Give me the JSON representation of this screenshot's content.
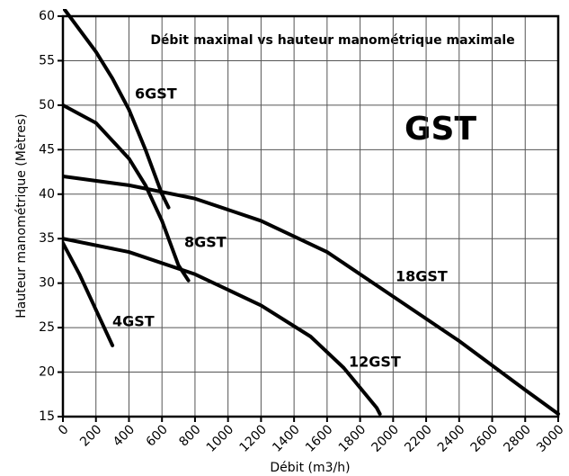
{
  "chart_data": {
    "type": "line",
    "title": "Débit maximal vs hauteur manométrique maximale",
    "annotation": "GST",
    "x_label": "Débit (m3/h)",
    "y_label": "Hauteur manométrique (Mètres)",
    "xlim": [
      0,
      3000
    ],
    "ylim": [
      15,
      60
    ],
    "xticks": [
      0,
      200,
      400,
      600,
      800,
      1000,
      1200,
      1400,
      1600,
      1800,
      2000,
      2200,
      2400,
      2600,
      2800,
      3000
    ],
    "yticks": [
      15,
      20,
      25,
      30,
      35,
      40,
      45,
      50,
      55,
      60
    ],
    "grid": true,
    "color": "#000000",
    "series": [
      {
        "name": "6GST",
        "x": [
          0,
          200,
          300,
          400,
          500,
          600,
          640
        ],
        "values": [
          61,
          56,
          53,
          49.5,
          45,
          40,
          38.5
        ]
      },
      {
        "name": "8GST",
        "x": [
          0,
          200,
          400,
          500,
          600,
          700,
          760
        ],
        "values": [
          50,
          48,
          44,
          41,
          37,
          32,
          30.3
        ]
      },
      {
        "name": "18GST",
        "x": [
          0,
          400,
          800,
          1200,
          1600,
          2000,
          2400,
          2800,
          3000
        ],
        "values": [
          42,
          41,
          39.5,
          37,
          33.5,
          28.5,
          23.5,
          18,
          15.3
        ]
      },
      {
        "name": "12GST",
        "x": [
          0,
          400,
          800,
          1200,
          1500,
          1700,
          1900,
          1920
        ],
        "values": [
          35,
          33.5,
          31,
          27.5,
          24,
          20.5,
          16,
          15.3
        ]
      },
      {
        "name": "4GST",
        "x": [
          0,
          100,
          200,
          300
        ],
        "values": [
          34.5,
          31,
          27,
          23
        ]
      }
    ]
  }
}
